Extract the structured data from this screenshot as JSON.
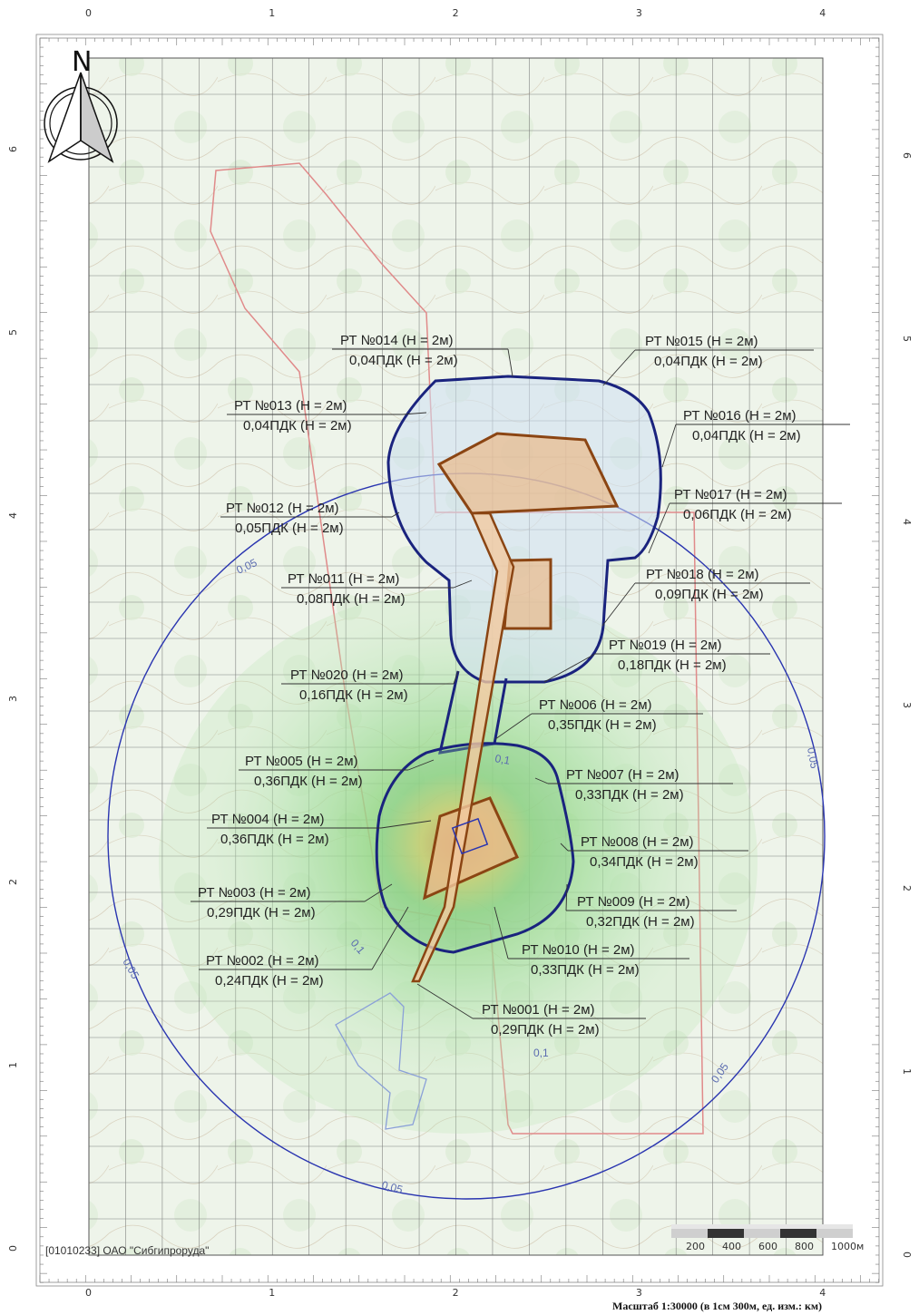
{
  "north_label": "N",
  "axis_x_ticks": [
    "0",
    "1",
    "2",
    "3",
    "4"
  ],
  "axis_y_ticks": [
    "0",
    "1",
    "2",
    "3",
    "4",
    "5",
    "6"
  ],
  "points": [
    {
      "id": "001",
      "name": "РТ №001 (Н = 2м)",
      "value": "0,29ПДК (Н = 2м)"
    },
    {
      "id": "002",
      "name": "РТ №002 (Н = 2м)",
      "value": "0,24ПДК (Н = 2м)"
    },
    {
      "id": "003",
      "name": "РТ №003 (Н = 2м)",
      "value": "0,29ПДК (Н = 2м)"
    },
    {
      "id": "004",
      "name": "РТ №004 (Н = 2м)",
      "value": "0,36ПДК (Н = 2м)"
    },
    {
      "id": "005",
      "name": "РТ №005 (Н = 2м)",
      "value": "0,36ПДК (Н = 2м)"
    },
    {
      "id": "006",
      "name": "РТ №006 (Н = 2м)",
      "value": "0,35ПДК (Н = 2м)"
    },
    {
      "id": "007",
      "name": "РТ №007 (Н = 2м)",
      "value": "0,33ПДК (Н = 2м)"
    },
    {
      "id": "008",
      "name": "РТ №008 (Н = 2м)",
      "value": "0,34ПДК (Н = 2м)"
    },
    {
      "id": "009",
      "name": "РТ №009 (Н = 2м)",
      "value": "0,32ПДК (Н = 2м)"
    },
    {
      "id": "010",
      "name": "РТ №010 (Н = 2м)",
      "value": "0,33ПДК (Н = 2м)"
    },
    {
      "id": "011",
      "name": "РТ №011 (Н = 2м)",
      "value": "0,08ПДК (Н = 2м)"
    },
    {
      "id": "012",
      "name": "РТ №012 (Н = 2м)",
      "value": "0,05ПДК (Н = 2м)"
    },
    {
      "id": "013",
      "name": "РТ №013 (Н = 2м)",
      "value": "0,04ПДК (Н = 2м)"
    },
    {
      "id": "014",
      "name": "РТ №014 (Н = 2м)",
      "value": "0,04ПДК (Н = 2м)"
    },
    {
      "id": "015",
      "name": "РТ №015 (Н = 2м)",
      "value": "0,04ПДК (Н = 2м)"
    },
    {
      "id": "016",
      "name": "РТ №016 (Н = 2м)",
      "value": "0,04ПДК (Н = 2м)"
    },
    {
      "id": "017",
      "name": "РТ №017 (Н = 2м)",
      "value": "0,06ПДК (Н = 2м)"
    },
    {
      "id": "018",
      "name": "РТ №018 (Н = 2м)",
      "value": "0,09ПДК (Н = 2м)"
    },
    {
      "id": "019",
      "name": "РТ №019 (Н = 2м)",
      "value": "0,18ПДК (Н = 2м)"
    },
    {
      "id": "020",
      "name": "РТ №020 (Н = 2м)",
      "value": "0,16ПДК (Н = 2м)"
    }
  ],
  "isoline_labels": [
    "0,05",
    "0,05",
    "0,05",
    "0,05",
    "0,05",
    "0,1",
    "0,1",
    "0,1"
  ],
  "footer_left": "[01010233] ОАО \"Сибгипроруда\"",
  "scalebar_labels": [
    "200",
    "400",
    "600",
    "800",
    "1000м"
  ],
  "scale_caption": "Масштаб 1:30000 (в 1см 300м, ед. изм.: км)",
  "colors": {
    "boundary": "#1a237e",
    "site": "#8b4513",
    "circle": "#2a35b0",
    "sanitary": "#e08a8a"
  }
}
